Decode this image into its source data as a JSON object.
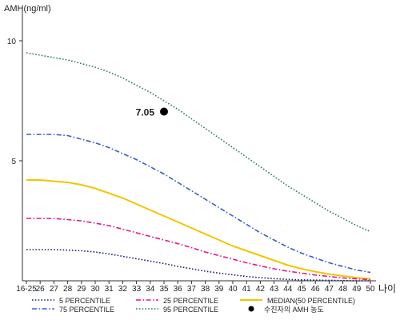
{
  "chart_data": {
    "type": "line",
    "ylabel": "AMH(ng/ml)",
    "xlabel": "나이",
    "x_categories": [
      "16-25",
      "26",
      "27",
      "28",
      "29",
      "30",
      "31",
      "32",
      "33",
      "34",
      "35",
      "36",
      "37",
      "38",
      "39",
      "40",
      "41",
      "42",
      "43",
      "44",
      "45",
      "46",
      "47",
      "48",
      "49",
      "50"
    ],
    "y_ticks": [
      5,
      10
    ],
    "ylim": [
      0,
      11
    ],
    "grid": false,
    "legend_position": "bottom",
    "series": [
      {
        "name": "95 PERCENTILE",
        "color": "#2e7d4f",
        "style": "dotted",
        "values": [
          9.5,
          9.4,
          9.3,
          9.2,
          9.05,
          8.9,
          8.7,
          8.45,
          8.15,
          7.85,
          7.5,
          7.15,
          6.75,
          6.35,
          5.95,
          5.55,
          5.15,
          4.75,
          4.35,
          3.95,
          3.6,
          3.25,
          2.9,
          2.6,
          2.3,
          2.05
        ]
      },
      {
        "name": "75 PERCENTILE",
        "color": "#3a5cc7",
        "style": "dashdot",
        "values": [
          6.1,
          6.1,
          6.1,
          6.05,
          5.9,
          5.75,
          5.55,
          5.3,
          5.05,
          4.75,
          4.45,
          4.1,
          3.75,
          3.4,
          3.05,
          2.7,
          2.35,
          2.0,
          1.7,
          1.4,
          1.15,
          0.95,
          0.75,
          0.6,
          0.45,
          0.35
        ]
      },
      {
        "name": "MEDIAN(50 PERCENTILE)",
        "color": "#f2c500",
        "style": "solid",
        "values": [
          4.2,
          4.2,
          4.15,
          4.1,
          4.0,
          3.85,
          3.65,
          3.45,
          3.2,
          2.95,
          2.7,
          2.45,
          2.2,
          1.95,
          1.7,
          1.45,
          1.25,
          1.05,
          0.85,
          0.65,
          0.5,
          0.38,
          0.28,
          0.2,
          0.13,
          0.08
        ]
      },
      {
        "name": "25 PERCENTILE",
        "color": "#e0198a",
        "style": "dashdot",
        "values": [
          2.6,
          2.6,
          2.6,
          2.55,
          2.5,
          2.4,
          2.3,
          2.15,
          2.0,
          1.85,
          1.7,
          1.55,
          1.38,
          1.2,
          1.05,
          0.9,
          0.75,
          0.62,
          0.5,
          0.4,
          0.32,
          0.24,
          0.18,
          0.12,
          0.08,
          0.05
        ]
      },
      {
        "name": "5 PERCENTILE",
        "color": "#1a2570",
        "style": "dotted",
        "values": [
          1.3,
          1.3,
          1.3,
          1.28,
          1.25,
          1.2,
          1.12,
          1.02,
          0.92,
          0.82,
          0.72,
          0.6,
          0.5,
          0.4,
          0.32,
          0.25,
          0.18,
          0.13,
          0.09,
          0.06,
          0.04,
          0.03,
          0.02,
          0.01,
          0.0,
          0.0
        ]
      }
    ],
    "highlight_point": {
      "legend_label": "수진자의 AMH 농도",
      "x": "35",
      "y": 7.05,
      "label": "7.05"
    }
  }
}
